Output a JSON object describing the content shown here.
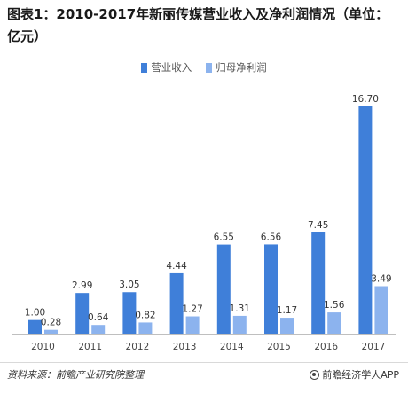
{
  "title": "图表1：2010-2017年新丽传媒营业收入及净利润情况（单位：亿元）",
  "colors": {
    "revenue": "#3f7fd9",
    "profit": "#8cb3ee"
  },
  "source": "资料来源：前瞻产业研究院整理",
  "brand": "前瞻经济学人APP",
  "brand_icon": "circle-logo-icon",
  "chart_data": {
    "type": "bar",
    "title": "图表1：2010-2017年新丽传媒营业收入及净利润情况（单位：亿元）",
    "categories": [
      "2010",
      "2011",
      "2012",
      "2013",
      "2014",
      "2015",
      "2016",
      "2017"
    ],
    "series": [
      {
        "name": "营业收入",
        "values": [
          1.0,
          2.99,
          3.05,
          4.44,
          6.55,
          6.56,
          7.45,
          16.7
        ],
        "labels": [
          "1.00",
          "2.99",
          "3.05",
          "4.44",
          "6.55",
          "6.56",
          "7.45",
          "16.70"
        ]
      },
      {
        "name": "归母净利润",
        "values": [
          0.28,
          0.64,
          0.82,
          1.27,
          1.31,
          1.17,
          1.56,
          3.49
        ],
        "labels": [
          "0.28",
          "0.64",
          "0.82",
          "1.27",
          "1.31",
          "1.17",
          "1.56",
          "3.49"
        ]
      }
    ],
    "ylim": [
      0,
      16.7
    ],
    "grid": false,
    "legend_position": "top-center"
  }
}
